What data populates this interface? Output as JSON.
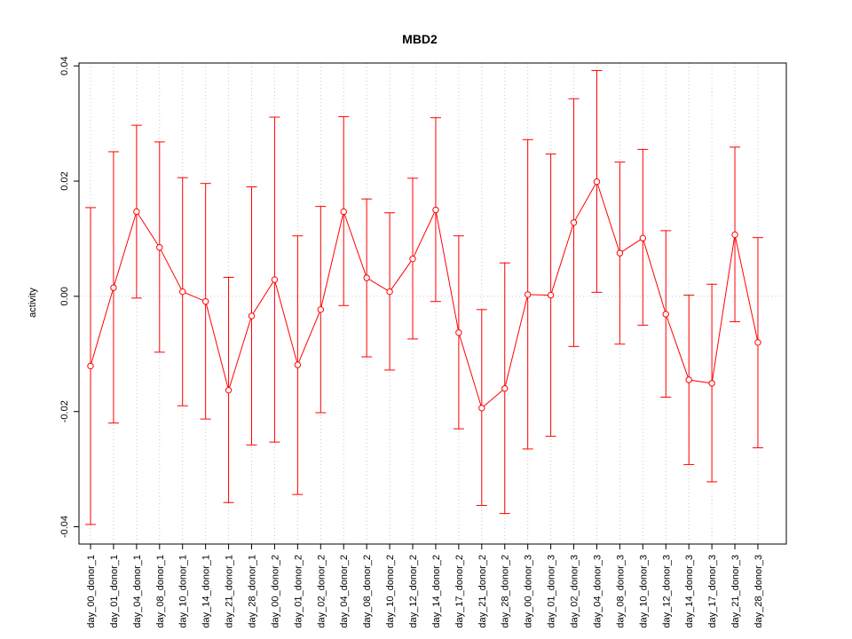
{
  "chart_data": {
    "type": "line",
    "title": "MBD2",
    "xlabel": "",
    "ylabel": "activity",
    "ylim": [
      -0.043,
      0.0405
    ],
    "yticks": [
      -0.04,
      -0.02,
      0.0,
      0.02,
      0.04
    ],
    "ytick_labels": [
      "-0.04",
      "-0.02",
      "0.00",
      "0.02",
      "0.04"
    ],
    "grid": true,
    "colors": {
      "series": "#ff0000",
      "grid": "#c8c8c8",
      "axis": "#000000"
    },
    "categories": [
      "day_00_donor_1",
      "day_01_donor_1",
      "day_04_donor_1",
      "day_08_donor_1",
      "day_10_donor_1",
      "day_14_donor_1",
      "day_21_donor_1",
      "day_28_donor_1",
      "day_00_donor_2",
      "day_01_donor_2",
      "day_02_donor_2",
      "day_04_donor_2",
      "day_08_donor_2",
      "day_10_donor_2",
      "day_12_donor_2",
      "day_14_donor_2",
      "day_17_donor_2",
      "day_21_donor_2",
      "day_28_donor_2",
      "day_00_donor_3",
      "day_01_donor_3",
      "day_02_donor_3",
      "day_04_donor_3",
      "day_08_donor_3",
      "day_10_donor_3",
      "day_12_donor_3",
      "day_14_donor_3",
      "day_17_donor_3",
      "day_21_donor_3",
      "day_28_donor_3"
    ],
    "values": [
      -0.0121,
      0.0015,
      0.0147,
      0.0085,
      0.0008,
      -0.0009,
      -0.0163,
      -0.0034,
      0.0029,
      -0.0119,
      -0.0023,
      0.0147,
      0.0032,
      0.0008,
      0.0065,
      0.015,
      -0.0063,
      -0.0194,
      -0.016,
      0.0003,
      0.0002,
      0.0128,
      0.0199,
      0.0075,
      0.0101,
      -0.0031,
      -0.0145,
      -0.0151,
      0.0107,
      -0.008
    ],
    "upper": [
      0.0154,
      0.0251,
      0.0297,
      0.0268,
      0.0206,
      0.0196,
      0.0033,
      0.019,
      0.0311,
      0.0105,
      0.0156,
      0.0312,
      0.0169,
      0.0145,
      0.0205,
      0.031,
      0.0105,
      -0.0023,
      0.0058,
      0.0272,
      0.0247,
      0.0343,
      0.0392,
      0.0233,
      0.0255,
      0.0114,
      0.0002,
      0.0021,
      0.0259,
      0.0102
    ],
    "lower": [
      -0.0396,
      -0.022,
      -0.0003,
      -0.0097,
      -0.019,
      -0.0213,
      -0.0358,
      -0.0258,
      -0.0253,
      -0.0344,
      -0.0202,
      -0.0016,
      -0.0105,
      -0.0128,
      -0.0074,
      -0.0009,
      -0.023,
      -0.0363,
      -0.0377,
      -0.0265,
      -0.0243,
      -0.0087,
      0.0007,
      -0.0083,
      -0.005,
      -0.0175,
      -0.0292,
      -0.0322,
      -0.0044,
      -0.0263
    ]
  }
}
